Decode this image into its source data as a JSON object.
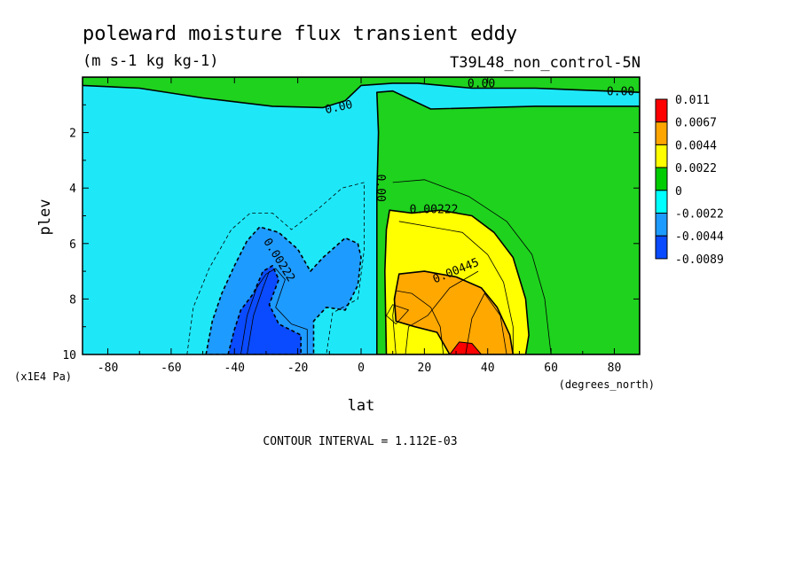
{
  "chart_data": {
    "type": "contour",
    "title": "poleward moisture flux transient eddy",
    "units": "(m s-1 kg kg-1)",
    "dataset": "T39L48_non_control-5N",
    "xlabel": "lat",
    "ylabel": "plev",
    "x_units": "(degrees_north)",
    "y_units": "(x1E4 Pa)",
    "xlim": [
      -88,
      88
    ],
    "ylim": [
      10,
      0
    ],
    "x_ticks": [
      -80,
      -60,
      -40,
      -20,
      0,
      20,
      40,
      60,
      80
    ],
    "x_tick_labels": [
      "-80",
      "-60",
      "-40",
      "-20",
      "0",
      "20",
      "40",
      "60",
      "80"
    ],
    "y_ticks": [
      2,
      4,
      6,
      8,
      10
    ],
    "y_tick_labels": [
      "2",
      "4",
      "6",
      "8",
      "10"
    ],
    "footer": "CONTOUR INTERVAL = 1.112E-03",
    "colorbar": {
      "labels": [
        "0.011",
        "0.0067",
        "0.0044",
        "0.0022",
        "0",
        "-0.0022",
        "-0.0044",
        "-0.0089"
      ],
      "colors": [
        "#ff0000",
        "#ffa500",
        "#ffff00",
        "#00cc00",
        "#00ffff",
        "#1e9bff",
        "#0a4bff"
      ]
    },
    "colors": {
      "sky": "#1ee8f8",
      "green": "#1ed21e",
      "yellow": "#ffff00",
      "orange": "#ffa800",
      "red": "#ff0000",
      "blue1": "#1e9bff",
      "blue2": "#0a4bff"
    },
    "contour_labels": [
      {
        "text": "0.00",
        "lon": 38,
        "p": 0.25
      },
      {
        "text": "0.00",
        "lon": 82,
        "p": 0.55
      },
      {
        "text": "0.00",
        "lon": -7,
        "p": 1.1
      },
      {
        "text": "0.00",
        "lon": 6,
        "p": 4.0
      },
      {
        "text": "0.00222",
        "lon": 23,
        "p": 4.8
      },
      {
        "text": "0.00445",
        "lon": 30,
        "p": 7.0
      },
      {
        "text": "0.00222",
        "lon": -26,
        "p": 6.6
      }
    ],
    "regions": [
      {
        "name": "top-green",
        "color": "green",
        "pts": [
          [
            -88,
            0
          ],
          [
            88,
            0
          ],
          [
            88,
            0.55
          ],
          [
            55,
            0.4
          ],
          [
            35,
            0.4
          ],
          [
            18,
            0.22
          ],
          [
            10,
            0.22
          ],
          [
            0,
            0.3
          ],
          [
            -5,
            0.85
          ],
          [
            -12,
            1.1
          ],
          [
            -28,
            1.05
          ],
          [
            -50,
            0.75
          ],
          [
            -70,
            0.4
          ],
          [
            -88,
            0.3
          ]
        ]
      },
      {
        "name": "nh-green",
        "color": "green",
        "pts": [
          [
            5,
            0.55
          ],
          [
            10,
            0.5
          ],
          [
            22,
            1.15
          ],
          [
            55,
            1.05
          ],
          [
            88,
            1.05
          ],
          [
            88,
            10
          ],
          [
            5,
            10
          ],
          [
            5,
            4.2
          ],
          [
            5.5,
            2
          ]
        ]
      },
      {
        "name": "nh-yellow",
        "color": "yellow",
        "pts": [
          [
            9,
            4.8
          ],
          [
            16,
            4.9
          ],
          [
            25,
            4.8
          ],
          [
            35,
            5.0
          ],
          [
            42,
            5.6
          ],
          [
            48,
            6.5
          ],
          [
            52,
            8.0
          ],
          [
            53,
            9.3
          ],
          [
            52,
            10
          ],
          [
            8,
            10
          ],
          [
            7.5,
            7
          ],
          [
            8,
            5.5
          ]
        ]
      },
      {
        "name": "nh-orange",
        "color": "orange",
        "pts": [
          [
            12,
            7.1
          ],
          [
            20,
            7.0
          ],
          [
            30,
            7.2
          ],
          [
            38,
            7.6
          ],
          [
            43,
            8.3
          ],
          [
            47,
            9.3
          ],
          [
            48,
            10
          ],
          [
            28,
            10
          ],
          [
            24,
            9.2
          ],
          [
            17,
            9.0
          ],
          [
            11,
            8.8
          ],
          [
            10.5,
            8.0
          ]
        ]
      },
      {
        "name": "nh-red",
        "color": "red",
        "pts": [
          [
            28,
            10
          ],
          [
            31,
            9.55
          ],
          [
            35,
            9.6
          ],
          [
            38,
            10
          ]
        ]
      },
      {
        "name": "sh-blue1",
        "color": "blue1",
        "pts": [
          [
            -49,
            10
          ],
          [
            -47,
            8.8
          ],
          [
            -44,
            7.8
          ],
          [
            -40,
            6.8
          ],
          [
            -36,
            5.9
          ],
          [
            -32,
            5.4
          ],
          [
            -26,
            5.6
          ],
          [
            -20,
            6.2
          ],
          [
            -16,
            7.0
          ],
          [
            -12,
            6.5
          ],
          [
            -5,
            5.8
          ],
          [
            -1,
            6.0
          ],
          [
            0,
            6.5
          ],
          [
            -1,
            7.5
          ],
          [
            -5,
            8.4
          ],
          [
            -11,
            8.3
          ],
          [
            -15,
            8.8
          ],
          [
            -15,
            10
          ]
        ]
      },
      {
        "name": "sh-blue2",
        "color": "blue2",
        "pts": [
          [
            -42,
            10
          ],
          [
            -40,
            9.1
          ],
          [
            -38,
            8.4
          ],
          [
            -34,
            7.8
          ],
          [
            -31,
            7.0
          ],
          [
            -28,
            6.8
          ],
          [
            -26,
            7.3
          ],
          [
            -29,
            8.2
          ],
          [
            -26,
            8.9
          ],
          [
            -19,
            9.3
          ],
          [
            -19,
            10
          ]
        ]
      }
    ],
    "contour_lines": [
      {
        "pts": [
          [
            -55,
            10
          ],
          [
            -53,
            8.3
          ],
          [
            -48,
            6.9
          ],
          [
            -41,
            5.5
          ],
          [
            -35,
            4.9
          ],
          [
            -28,
            4.9
          ],
          [
            -22,
            5.5
          ],
          [
            -14,
            4.8
          ],
          [
            -6,
            4.0
          ],
          [
            1,
            3.8
          ],
          [
            1,
            6.2
          ],
          [
            -1,
            8.0
          ],
          [
            -9,
            8.5
          ],
          [
            -11,
            10
          ]
        ],
        "dash": true
      },
      {
        "pts": [
          [
            -36,
            10
          ],
          [
            -34,
            8.6
          ],
          [
            -31,
            7.6
          ],
          [
            -29,
            7.0
          ]
        ],
        "dash": false
      },
      {
        "pts": [
          [
            -38,
            10
          ],
          [
            -36,
            8.6
          ],
          [
            -33,
            7.6
          ],
          [
            -30,
            7.1
          ],
          [
            -27,
            6.9
          ],
          [
            -24,
            7.3
          ],
          [
            -27,
            8.3
          ],
          [
            -22,
            8.9
          ],
          [
            -17,
            9.1
          ],
          [
            -17,
            10
          ]
        ],
        "dash": false
      },
      {
        "pts": [
          [
            11,
            10
          ],
          [
            10,
            8.6
          ],
          [
            11,
            7.7
          ],
          [
            16,
            7.8
          ],
          [
            22,
            8.3
          ],
          [
            25,
            9.0
          ],
          [
            26,
            10
          ]
        ],
        "dash": false
      },
      {
        "pts": [
          [
            8,
            8.6
          ],
          [
            10,
            8.2
          ],
          [
            15,
            8.4
          ],
          [
            11,
            8.9
          ],
          [
            8,
            8.6
          ]
        ],
        "dash": false
      },
      {
        "pts": [
          [
            33,
            10
          ],
          [
            35,
            8.7
          ],
          [
            39,
            7.8
          ],
          [
            44,
            8.6
          ],
          [
            46,
            10
          ]
        ],
        "dash": false
      },
      {
        "pts": [
          [
            14,
            10
          ],
          [
            15,
            9.0
          ],
          [
            21,
            8.6
          ],
          [
            28,
            7.6
          ],
          [
            37,
            7.0
          ]
        ],
        "dash": false
      },
      {
        "pts": [
          [
            12,
            5.2
          ],
          [
            22,
            5.4
          ],
          [
            32,
            5.6
          ],
          [
            40,
            6.4
          ],
          [
            45,
            7.4
          ],
          [
            48,
            9.0
          ],
          [
            48,
            10
          ]
        ],
        "dash": false
      },
      {
        "pts": [
          [
            10,
            3.8
          ],
          [
            20,
            3.7
          ],
          [
            34,
            4.3
          ],
          [
            46,
            5.2
          ],
          [
            54,
            6.4
          ],
          [
            58,
            8.0
          ],
          [
            60,
            10
          ]
        ],
        "dash": false
      }
    ]
  }
}
